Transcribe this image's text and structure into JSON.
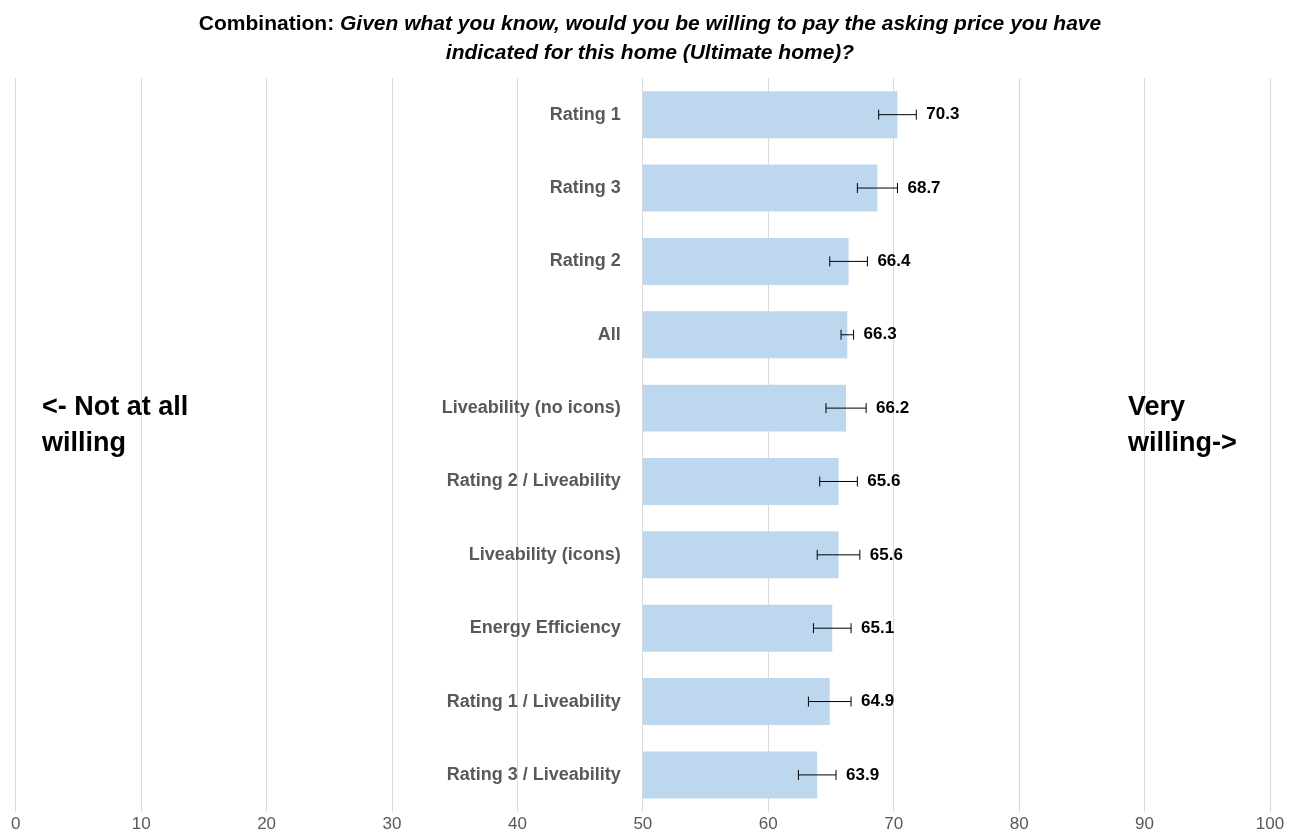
{
  "chart_data": {
    "type": "bar",
    "orientation": "horizontal",
    "title": "Combination: Given what you know, would you be willing to pay the asking price you have indicated for this home (Ultimate home)?",
    "categories": [
      "Rating 1",
      "Rating 3",
      "Rating 2",
      "All",
      "Liveability (no icons)",
      "Rating 2 / Liveability",
      "Liveability (icons)",
      "Energy Efficiency",
      "Rating 1 / Liveability",
      "Rating 3 / Liveability"
    ],
    "base": [
      50,
      50,
      50,
      50,
      50,
      50,
      50,
      50,
      50,
      50
    ],
    "values": [
      20.3,
      18.7,
      16.4,
      16.3,
      16.2,
      15.6,
      15.6,
      15.1,
      14.9,
      13.9
    ],
    "value_labels": [
      "70.3",
      "68.7",
      "66.4",
      "66.3",
      "66.2",
      "65.6",
      "65.6",
      "65.1",
      "64.9",
      "63.9"
    ],
    "errors": [
      1.5,
      1.6,
      1.5,
      0.5,
      1.6,
      1.5,
      1.7,
      1.5,
      1.7,
      1.5
    ],
    "color": "#bdd7ee",
    "xlim": [
      0,
      100
    ],
    "xticks": [
      0,
      10,
      20,
      30,
      40,
      50,
      60,
      70,
      80,
      90,
      100
    ],
    "grid": "x",
    "annotations": [
      "<- Not at all willing",
      "Very willing->"
    ]
  }
}
